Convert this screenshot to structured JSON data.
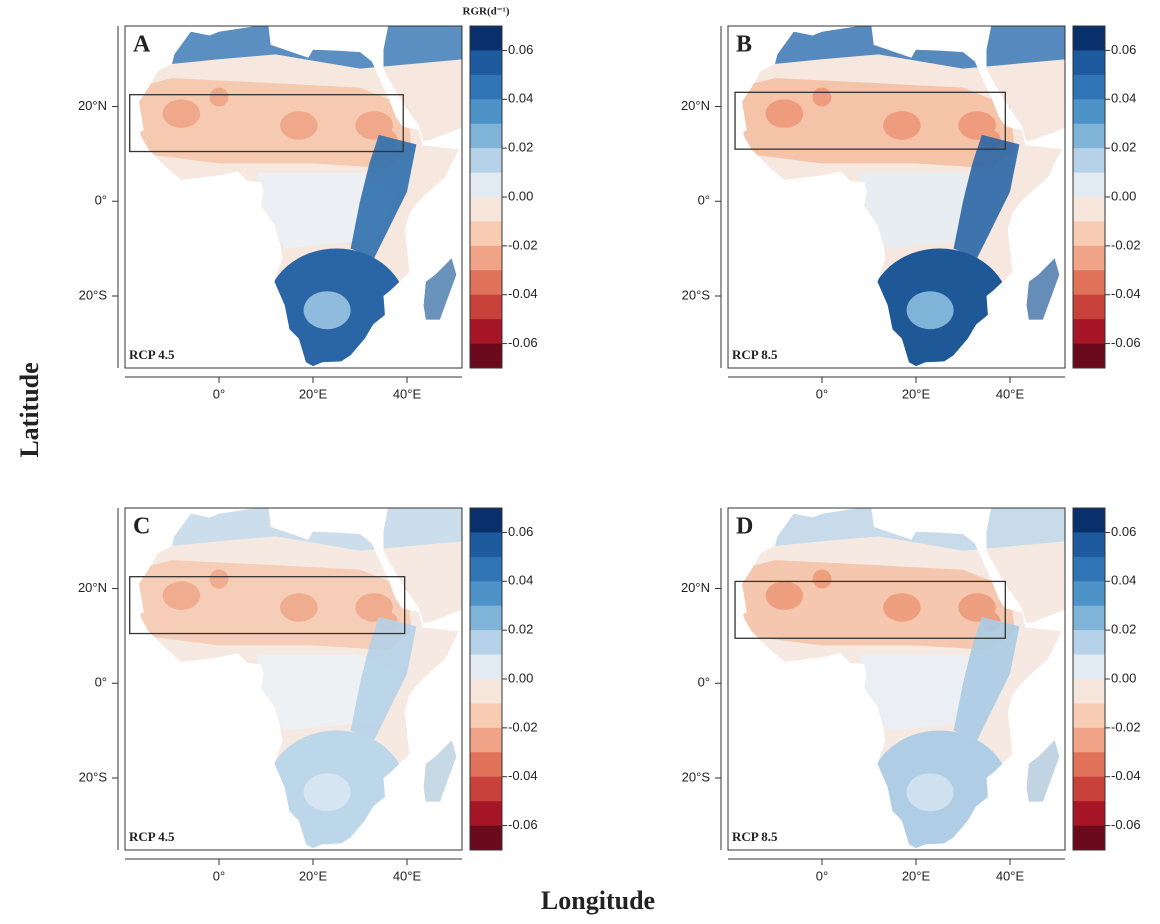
{
  "axis_title_y": "Latitude",
  "axis_title_x": "Longitude",
  "colorbar_title": "RGR(d⁻¹)",
  "map": {
    "xlim": [
      -20,
      51.7
    ],
    "ylim": [
      -35.2,
      37
    ],
    "xticks": [
      {
        "value": 0,
        "label": "0°"
      },
      {
        "value": 20,
        "label": "20°E"
      },
      {
        "value": 40,
        "label": "40°E"
      }
    ],
    "yticks": [
      {
        "value": 20,
        "label": "20°N"
      },
      {
        "value": 0,
        "label": "0°"
      },
      {
        "value": -20,
        "label": "20°S"
      }
    ]
  },
  "colorbar": {
    "lim": [
      -0.07,
      0.07
    ],
    "ticks": [
      0.06,
      0.04,
      0.02,
      {
        "value": 0,
        "label": "0.00"
      },
      -0.02,
      -0.04,
      -0.06
    ],
    "colors": [
      "#08306b",
      "#1d5a9e",
      "#2f74b5",
      "#4e93c7",
      "#7fb3d8",
      "#b5d2e8",
      "#e2ebf2",
      "#f6e6dc",
      "#f8cbb3",
      "#f1a487",
      "#e07259",
      "#c9413b",
      "#a61627",
      "#6b0a1c"
    ]
  },
  "panels": [
    {
      "label": "A",
      "scenario": "RCP 4.5",
      "box": {
        "lon": [
          -19,
          39.2
        ],
        "lat": [
          10.5,
          22.5
        ]
      }
    },
    {
      "label": "B",
      "scenario": "RCP 8.5",
      "box": {
        "lon": [
          -18.5,
          39
        ],
        "lat": [
          11,
          23
        ]
      }
    },
    {
      "label": "C",
      "scenario": "RCP 4.5",
      "box": {
        "lon": [
          -19,
          39.5
        ],
        "lat": [
          10.5,
          22.5
        ]
      }
    },
    {
      "label": "D",
      "scenario": "RCP 8.5",
      "box": {
        "lon": [
          -18.5,
          39
        ],
        "lat": [
          9.5,
          21.5
        ]
      }
    }
  ]
}
